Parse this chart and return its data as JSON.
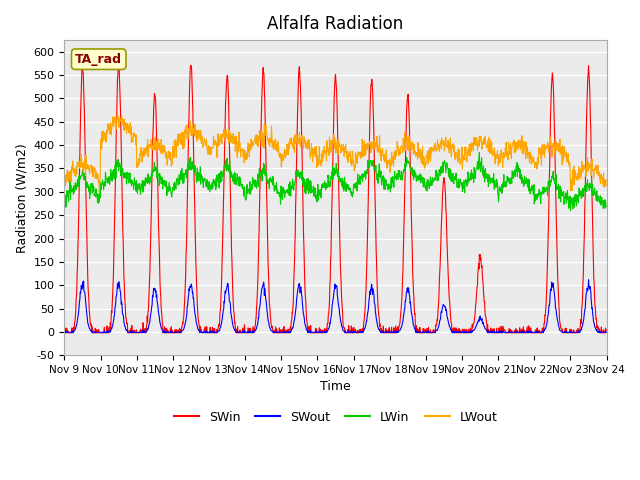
{
  "title": "Alfalfa Radiation",
  "xlabel": "Time",
  "ylabel": "Radiation (W/m2)",
  "ylim": [
    -50,
    625
  ],
  "annotation": "TA_rad",
  "colors": {
    "SWin": "#ff0000",
    "SWout": "#0000ff",
    "LWin": "#00cc00",
    "LWout": "#ffa500"
  },
  "tick_labels": [
    "Nov 9",
    "Nov 10",
    "Nov 11",
    "Nov 12",
    "Nov 13",
    "Nov 14",
    "Nov 15",
    "Nov 16",
    "Nov 17",
    "Nov 18",
    "Nov 19",
    "Nov 20",
    "Nov 21",
    "Nov 22",
    "Nov 23",
    "Nov 24"
  ],
  "yticks": [
    -50,
    0,
    50,
    100,
    150,
    200,
    250,
    300,
    350,
    400,
    450,
    500,
    550,
    600
  ],
  "axes_bg": "#ebebeb",
  "n_days": 15
}
